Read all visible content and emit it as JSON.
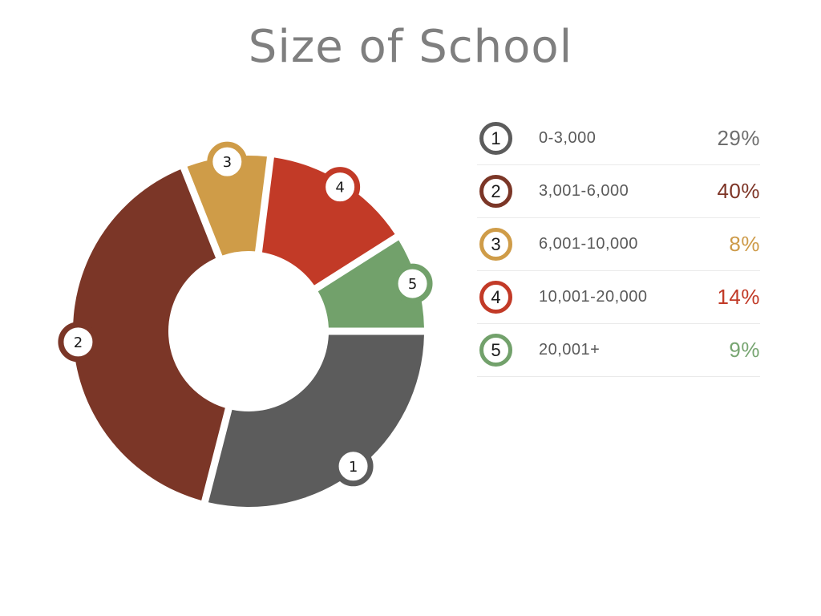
{
  "title": "Size of School",
  "chart_data": {
    "type": "pie",
    "subtype": "donut",
    "title": "Size of School",
    "unit": "%",
    "start_angle_deg": 0,
    "direction": "clockwise",
    "legend_position": "right",
    "categories": [
      "0-3,000",
      "3,001-6,000",
      "6,001-10,000",
      "10,001-20,000",
      "20,001+"
    ],
    "values": [
      29,
      40,
      8,
      14,
      9
    ],
    "slices": [
      {
        "number": "1",
        "label": "0-3,000",
        "value": 29,
        "percent_label": "29%",
        "color": "#5C5C5C",
        "percent_color": "#6E6E6E"
      },
      {
        "number": "2",
        "label": "3,001-6,000",
        "value": 40,
        "percent_label": "40%",
        "color": "#7B3627",
        "percent_color": "#7D3426"
      },
      {
        "number": "3",
        "label": "6,001-10,000",
        "value": 8,
        "percent_label": "8%",
        "color": "#CF9C48",
        "percent_color": "#CD9A48"
      },
      {
        "number": "4",
        "label": "10,001-20,000",
        "value": 14,
        "percent_label": "14%",
        "color": "#C23A27",
        "percent_color": "#C13A27"
      },
      {
        "number": "5",
        "label": "20,001+",
        "value": 9,
        "percent_label": "9%",
        "color": "#72A16B",
        "percent_color": "#77A571"
      }
    ]
  },
  "colors": {
    "title": "#7F7F7F",
    "legend_label": "#5A5A5A",
    "separator": "#EAEAEA",
    "marker_number": "#1A1A1A",
    "background": "#FFFFFF"
  }
}
